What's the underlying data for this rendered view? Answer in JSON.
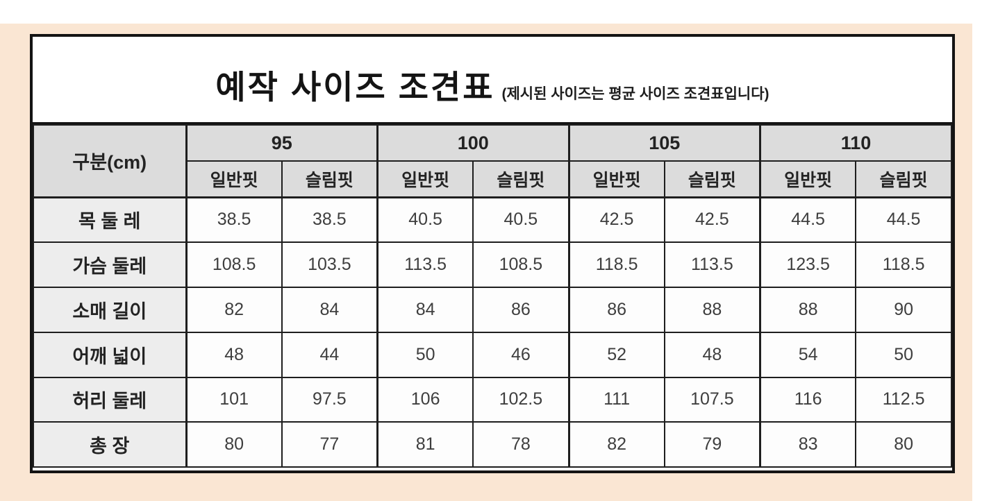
{
  "title": {
    "main": "예작 사이즈 조견표",
    "note": "(제시된 사이즈는 평균 사이즈 조견표입니다)"
  },
  "colors": {
    "mat_background": "#fae6d3",
    "header_cell": "#dcdcdc",
    "label_cell": "#ededed",
    "border": "#1e1e1e"
  },
  "table": {
    "corner_label": "구분(cm)",
    "sizes": [
      "95",
      "100",
      "105",
      "110"
    ],
    "fits": [
      "일반핏",
      "슬림핏",
      "일반핏",
      "슬림핏",
      "일반핏",
      "슬림핏",
      "일반핏",
      "슬림핏"
    ],
    "rows": [
      {
        "label": "목 둘 레",
        "values": [
          "38.5",
          "38.5",
          "40.5",
          "40.5",
          "42.5",
          "42.5",
          "44.5",
          "44.5"
        ]
      },
      {
        "label": "가슴 둘레",
        "values": [
          "108.5",
          "103.5",
          "113.5",
          "108.5",
          "118.5",
          "113.5",
          "123.5",
          "118.5"
        ]
      },
      {
        "label": "소매 길이",
        "values": [
          "82",
          "84",
          "84",
          "86",
          "86",
          "88",
          "88",
          "90"
        ]
      },
      {
        "label": "어깨 넓이",
        "values": [
          "48",
          "44",
          "50",
          "46",
          "52",
          "48",
          "54",
          "50"
        ]
      },
      {
        "label": "허리 둘레",
        "values": [
          "101",
          "97.5",
          "106",
          "102.5",
          "111",
          "107.5",
          "116",
          "112.5"
        ]
      },
      {
        "label": "총 장",
        "values": [
          "80",
          "77",
          "81",
          "78",
          "82",
          "79",
          "83",
          "80"
        ]
      }
    ]
  }
}
